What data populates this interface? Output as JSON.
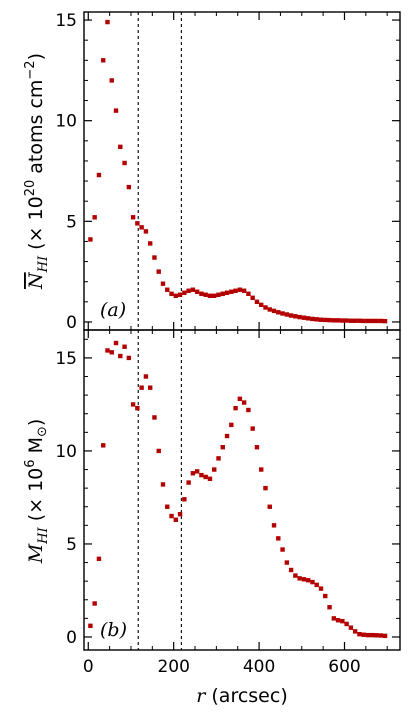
{
  "colors": {
    "marker": "#b30000",
    "axis": "#000000",
    "refline": "#000000"
  },
  "chart_data": [
    {
      "type": "scatter",
      "panel_label": "(a)",
      "ylabel": "N̄HI (× 10^20 atoms cm^-2)",
      "ylabel_parts": {
        "symbol": "N",
        "subscript": "HI",
        "units_prefix": " (× 10",
        "exponent": "20",
        "units_suffix": " atoms cm",
        "unit_exponent": "−2",
        "close": ")"
      },
      "xlim": [
        -10,
        730
      ],
      "ylim": [
        -0.4,
        15.4
      ],
      "yticks": [
        0,
        5,
        10,
        15
      ],
      "ytick_labels": [
        "0",
        "5",
        "10",
        "15"
      ],
      "reference_lines_x": [
        117,
        218
      ],
      "x": [
        5,
        15,
        25,
        35,
        45,
        55,
        65,
        75,
        85,
        95,
        105,
        115,
        125,
        135,
        145,
        155,
        165,
        175,
        185,
        195,
        205,
        215,
        225,
        235,
        245,
        255,
        265,
        275,
        285,
        295,
        305,
        315,
        325,
        335,
        345,
        355,
        365,
        375,
        385,
        395,
        405,
        415,
        425,
        435,
        445,
        455,
        465,
        475,
        485,
        495,
        505,
        515,
        525,
        535,
        545,
        555,
        565,
        575,
        585,
        595,
        605,
        615,
        625,
        635,
        645,
        655,
        665,
        675,
        685,
        695
      ],
      "y": [
        4.1,
        5.2,
        7.3,
        13.0,
        14.9,
        12.0,
        10.5,
        8.7,
        7.9,
        6.7,
        5.2,
        4.9,
        4.7,
        4.5,
        3.9,
        3.2,
        2.5,
        1.9,
        1.6,
        1.4,
        1.3,
        1.35,
        1.45,
        1.55,
        1.6,
        1.5,
        1.4,
        1.35,
        1.3,
        1.3,
        1.35,
        1.4,
        1.45,
        1.5,
        1.55,
        1.6,
        1.55,
        1.4,
        1.2,
        1.0,
        0.85,
        0.72,
        0.62,
        0.55,
        0.48,
        0.42,
        0.37,
        0.32,
        0.28,
        0.24,
        0.21,
        0.18,
        0.15,
        0.13,
        0.11,
        0.1,
        0.09,
        0.08,
        0.08,
        0.07,
        0.07,
        0.06,
        0.06,
        0.06,
        0.05,
        0.05,
        0.05,
        0.05,
        0.05,
        0.04
      ]
    },
    {
      "type": "scatter",
      "panel_label": "(b)",
      "ylabel": "MHI (× 10^6 M☉)",
      "ylabel_parts": {
        "symbol": "M",
        "subscript": "HI",
        "units_prefix": " (× 10",
        "exponent": "6",
        "units_suffix": " M",
        "sun": "⊙",
        "close": ")"
      },
      "xlabel": "r (arcsec)",
      "xlabel_parts": {
        "symbol": "r",
        "units": " (arcsec)"
      },
      "xlim": [
        -10,
        730
      ],
      "ylim": [
        -0.7,
        16.5
      ],
      "xticks": [
        0,
        200,
        400,
        600
      ],
      "xtick_labels": [
        "0",
        "200",
        "400",
        "600"
      ],
      "yticks": [
        0,
        5,
        10,
        15
      ],
      "ytick_labels": [
        "0",
        "5",
        "10",
        "15"
      ],
      "reference_lines_x": [
        117,
        218
      ],
      "x": [
        5,
        15,
        25,
        35,
        45,
        55,
        65,
        75,
        85,
        95,
        105,
        115,
        125,
        135,
        145,
        155,
        165,
        175,
        185,
        195,
        205,
        215,
        225,
        235,
        245,
        255,
        265,
        275,
        285,
        295,
        305,
        315,
        325,
        335,
        345,
        355,
        365,
        375,
        385,
        395,
        405,
        415,
        425,
        435,
        445,
        455,
        465,
        475,
        485,
        495,
        505,
        515,
        525,
        535,
        545,
        555,
        565,
        575,
        585,
        595,
        605,
        615,
        625,
        635,
        645,
        655,
        665,
        675,
        685,
        695
      ],
      "y": [
        0.6,
        1.8,
        4.2,
        10.3,
        15.4,
        15.3,
        15.8,
        15.1,
        15.6,
        15.0,
        12.5,
        12.3,
        13.4,
        14.0,
        13.4,
        11.8,
        10.0,
        8.2,
        7.0,
        6.5,
        6.3,
        6.6,
        7.4,
        8.3,
        8.8,
        8.9,
        8.7,
        8.6,
        8.5,
        9.0,
        9.6,
        10.2,
        10.8,
        11.4,
        12.3,
        12.8,
        12.6,
        12.2,
        11.2,
        10.2,
        9.0,
        8.0,
        7.0,
        6.0,
        5.3,
        4.7,
        4.0,
        3.6,
        3.3,
        3.15,
        3.1,
        3.05,
        2.95,
        2.8,
        2.6,
        2.2,
        1.6,
        1.0,
        0.9,
        0.85,
        0.7,
        0.5,
        0.3,
        0.15,
        0.12,
        0.1,
        0.1,
        0.09,
        0.08,
        0.06
      ]
    }
  ]
}
